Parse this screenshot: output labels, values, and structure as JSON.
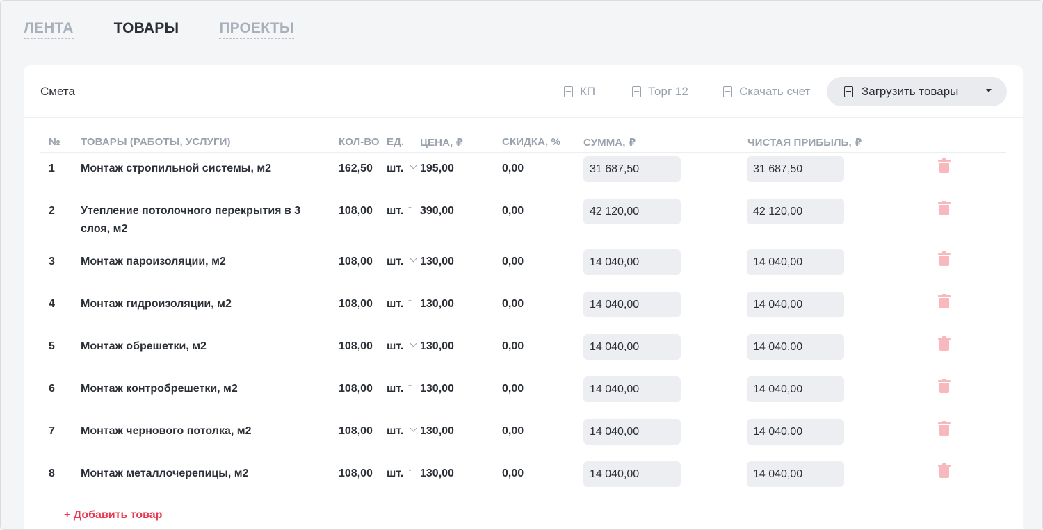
{
  "tabs": [
    {
      "label": "ЛЕНТА",
      "active": false
    },
    {
      "label": "ТОВАРЫ",
      "active": true
    },
    {
      "label": "ПРОЕКТЫ",
      "active": false
    }
  ],
  "card": {
    "title": "Смета",
    "actions": {
      "kp": "КП",
      "torg12": "Торг 12",
      "invoice": "Скачать счет",
      "upload": "Загрузить товары"
    }
  },
  "columns": {
    "num": "№",
    "name": "ТОВАРЫ (РАБОТЫ, УСЛУГИ)",
    "qty": "КОЛ-ВО",
    "unit": "ЕД.",
    "price": "ЦЕНА, ₽",
    "discount": "СКИДКА, %",
    "sum": "СУММА, ₽",
    "profit": "ЧИСТАЯ ПРИБЫЛЬ, ₽"
  },
  "rows": [
    {
      "num": "1",
      "name": "Монтаж стропильной системы, м2",
      "qty": "162,50",
      "unit": "шт.",
      "price": "195,00",
      "discount": "0,00",
      "sum": "31 687,50",
      "profit": "31 687,50"
    },
    {
      "num": "2",
      "name": "Утепление потолочного перекрытия в 3 слоя, м2",
      "qty": "108,00",
      "unit": "шт.",
      "price": "390,00",
      "discount": "0,00",
      "sum": "42 120,00",
      "profit": "42 120,00"
    },
    {
      "num": "3",
      "name": "Монтаж пароизоляции, м2",
      "qty": "108,00",
      "unit": "шт.",
      "price": "130,00",
      "discount": "0,00",
      "sum": "14 040,00",
      "profit": "14 040,00"
    },
    {
      "num": "4",
      "name": "Монтаж гидроизоляции, м2",
      "qty": "108,00",
      "unit": "шт.",
      "price": "130,00",
      "discount": "0,00",
      "sum": "14 040,00",
      "profit": "14 040,00"
    },
    {
      "num": "5",
      "name": "Монтаж обрешетки, м2",
      "qty": "108,00",
      "unit": "шт.",
      "price": "130,00",
      "discount": "0,00",
      "sum": "14 040,00",
      "profit": "14 040,00"
    },
    {
      "num": "6",
      "name": "Монтаж контробрешетки, м2",
      "qty": "108,00",
      "unit": "шт.",
      "price": "130,00",
      "discount": "0,00",
      "sum": "14 040,00",
      "profit": "14 040,00"
    },
    {
      "num": "7",
      "name": "Монтаж чернового потолка, м2",
      "qty": "108,00",
      "unit": "шт.",
      "price": "130,00",
      "discount": "0,00",
      "sum": "14 040,00",
      "profit": "14 040,00"
    },
    {
      "num": "8",
      "name": "Монтаж металлочерепицы, м2",
      "qty": "108,00",
      "unit": "шт.",
      "price": "130,00",
      "discount": "0,00",
      "sum": "14 040,00",
      "profit": "14 040,00"
    }
  ],
  "add_item": "+ Добавить товар",
  "colors": {
    "accent_red": "#e8384f",
    "trash_pink": "#f7b8be",
    "muted": "#9aa3ad"
  }
}
